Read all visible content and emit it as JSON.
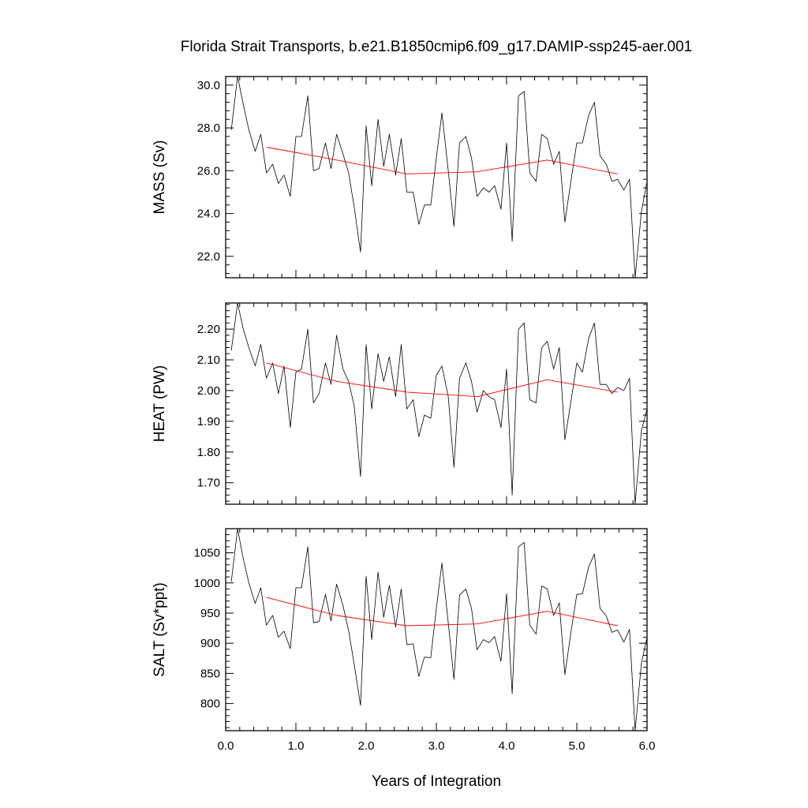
{
  "title": "Florida Strait Transports, b.e21.B1850cmip6.f09_g17.DAMIP-ssp245-aer.001",
  "colors": {
    "raw": "#000000",
    "smooth": "#ff0000",
    "frame": "#000000"
  },
  "chart_data": [
    {
      "type": "line",
      "name": "mass",
      "ylabel": "MASS (Sv)",
      "xlabel": "",
      "xlim": [
        0.0,
        6.0
      ],
      "ylim": [
        21.0,
        30.4
      ],
      "yticks": [
        22.0,
        24.0,
        26.0,
        28.0,
        30.0
      ],
      "ytick_labels": [
        "22.0",
        "24.0",
        "26.0",
        "28.0",
        "30.0"
      ],
      "xticks": [
        0.0,
        1.0,
        2.0,
        3.0,
        4.0,
        5.0,
        6.0
      ],
      "xtick_labels": [],
      "series": [
        {
          "x": [
            0.08,
            0.17,
            0.25,
            0.33,
            0.42,
            0.5,
            0.58,
            0.67,
            0.75,
            0.83,
            0.92,
            1.0,
            1.08,
            1.17,
            1.25,
            1.33,
            1.42,
            1.5,
            1.58,
            1.67,
            1.75,
            1.83,
            1.92,
            2.0,
            2.08,
            2.17,
            2.25,
            2.33,
            2.42,
            2.5,
            2.58,
            2.67,
            2.75,
            2.83,
            2.92,
            3.0,
            3.08,
            3.17,
            3.25,
            3.33,
            3.42,
            3.5,
            3.58,
            3.67,
            3.75,
            3.83,
            3.92,
            4.0,
            4.08,
            4.17,
            4.25,
            4.33,
            4.42,
            4.5,
            4.58,
            4.67,
            4.75,
            4.83,
            4.92,
            5.0,
            5.08,
            5.17,
            5.25,
            5.33,
            5.42,
            5.5,
            5.58,
            5.67,
            5.75,
            5.83,
            5.92,
            6.0
          ],
          "y": [
            27.9,
            30.4,
            29.1,
            27.9,
            26.9,
            27.7,
            25.9,
            26.3,
            25.4,
            25.8,
            24.8,
            27.6,
            27.6,
            29.5,
            26.0,
            26.1,
            27.3,
            26.1,
            27.7,
            26.8,
            25.9,
            24.3,
            22.2,
            28.1,
            25.3,
            28.4,
            26.2,
            27.7,
            25.8,
            27.5,
            25.0,
            25.0,
            23.5,
            24.4,
            24.4,
            26.6,
            28.7,
            26.0,
            23.4,
            27.3,
            27.6,
            26.6,
            24.8,
            25.2,
            25.0,
            25.3,
            24.2,
            27.3,
            22.7,
            29.5,
            29.7,
            25.9,
            25.5,
            27.7,
            27.5,
            26.3,
            26.9,
            23.6,
            25.6,
            27.3,
            27.3,
            28.6,
            29.2,
            26.7,
            26.3,
            25.5,
            25.6,
            25.1,
            25.6,
            21.0,
            24.1,
            25.5
          ]
        },
        {
          "x": [
            0.58,
            1.58,
            2.58,
            3.58,
            4.58,
            5.58
          ],
          "y": [
            27.1,
            26.5,
            25.85,
            25.95,
            26.5,
            25.85
          ]
        }
      ]
    },
    {
      "type": "line",
      "name": "heat",
      "ylabel": "HEAT (PW)",
      "xlabel": "",
      "xlim": [
        0.0,
        6.0
      ],
      "ylim": [
        1.63,
        2.285
      ],
      "yticks": [
        1.7,
        1.8,
        1.9,
        2.0,
        2.1,
        2.2
      ],
      "ytick_labels": [
        "1.70",
        "1.80",
        "1.90",
        "2.00",
        "2.10",
        "2.20"
      ],
      "xticks": [
        0.0,
        1.0,
        2.0,
        3.0,
        4.0,
        5.0,
        6.0
      ],
      "xtick_labels": [],
      "series": [
        {
          "x": [
            0.08,
            0.17,
            0.25,
            0.33,
            0.42,
            0.5,
            0.58,
            0.67,
            0.75,
            0.83,
            0.92,
            1.0,
            1.08,
            1.17,
            1.25,
            1.33,
            1.42,
            1.5,
            1.58,
            1.67,
            1.75,
            1.83,
            1.92,
            2.0,
            2.08,
            2.17,
            2.25,
            2.33,
            2.42,
            2.5,
            2.58,
            2.67,
            2.75,
            2.83,
            2.92,
            3.0,
            3.08,
            3.17,
            3.25,
            3.33,
            3.42,
            3.5,
            3.58,
            3.67,
            3.75,
            3.83,
            3.92,
            4.0,
            4.08,
            4.17,
            4.25,
            4.33,
            4.42,
            4.5,
            4.58,
            4.67,
            4.75,
            4.83,
            4.92,
            5.0,
            5.08,
            5.17,
            5.25,
            5.33,
            5.42,
            5.5,
            5.58,
            5.67,
            5.75,
            5.83,
            5.92,
            6.0
          ],
          "y": [
            2.13,
            2.285,
            2.2,
            2.14,
            2.08,
            2.15,
            2.04,
            2.09,
            1.99,
            2.08,
            1.88,
            2.06,
            2.07,
            2.2,
            1.96,
            1.99,
            2.09,
            2.02,
            2.18,
            2.07,
            2.03,
            1.95,
            1.72,
            2.15,
            1.94,
            2.12,
            2.03,
            2.11,
            1.98,
            2.15,
            1.94,
            1.97,
            1.85,
            1.92,
            1.91,
            2.05,
            2.08,
            1.98,
            1.75,
            2.04,
            2.09,
            2.03,
            1.93,
            2.0,
            1.98,
            1.97,
            1.88,
            2.07,
            1.66,
            2.2,
            2.22,
            1.97,
            1.96,
            2.14,
            2.16,
            2.07,
            2.14,
            1.84,
            1.97,
            2.09,
            2.06,
            2.17,
            2.22,
            2.02,
            2.02,
            1.99,
            2.01,
            2.0,
            2.04,
            1.63,
            1.87,
            1.94
          ]
        },
        {
          "x": [
            0.58,
            1.58,
            2.58,
            3.58,
            4.58,
            5.58
          ],
          "y": [
            2.09,
            2.03,
            1.995,
            1.98,
            2.035,
            1.995
          ]
        }
      ]
    },
    {
      "type": "line",
      "name": "salt",
      "ylabel": "SALT (Sv*ppt)",
      "xlabel": "Years of Integration",
      "xlim": [
        0.0,
        6.0
      ],
      "ylim": [
        755,
        1090
      ],
      "yticks": [
        800,
        850,
        900,
        950,
        1000,
        1050
      ],
      "ytick_labels": [
        "800",
        "850",
        "900",
        "950",
        "1000",
        "1050"
      ],
      "xticks": [
        0.0,
        1.0,
        2.0,
        3.0,
        4.0,
        5.0,
        6.0
      ],
      "xtick_labels": [
        "0.0",
        "1.0",
        "2.0",
        "3.0",
        "4.0",
        "5.0",
        "6.0"
      ],
      "series": [
        {
          "x": [
            0.08,
            0.17,
            0.25,
            0.33,
            0.42,
            0.5,
            0.58,
            0.67,
            0.75,
            0.83,
            0.92,
            1.0,
            1.08,
            1.17,
            1.25,
            1.33,
            1.42,
            1.5,
            1.58,
            1.67,
            1.75,
            1.83,
            1.92,
            2.0,
            2.08,
            2.17,
            2.25,
            2.33,
            2.42,
            2.5,
            2.58,
            2.67,
            2.75,
            2.83,
            2.92,
            3.0,
            3.08,
            3.17,
            3.25,
            3.33,
            3.42,
            3.5,
            3.58,
            3.67,
            3.75,
            3.83,
            3.92,
            4.0,
            4.08,
            4.17,
            4.25,
            4.33,
            4.42,
            4.5,
            4.58,
            4.67,
            4.75,
            4.83,
            4.92,
            5.0,
            5.08,
            5.17,
            5.25,
            5.33,
            5.42,
            5.5,
            5.58,
            5.67,
            5.75,
            5.83,
            5.92,
            6.0
          ],
          "y": [
            1002,
            1090,
            1040,
            1000,
            966,
            992,
            930,
            946,
            910,
            920,
            891,
            992,
            992,
            1060,
            934,
            936,
            981,
            937,
            998,
            963,
            921,
            865,
            797,
            1011,
            906,
            1018,
            943,
            996,
            927,
            990,
            898,
            899,
            845,
            877,
            876,
            958,
            1033,
            934,
            840,
            980,
            990,
            958,
            889,
            906,
            901,
            911,
            870,
            982,
            816,
            1060,
            1067,
            930,
            915,
            995,
            990,
            946,
            967,
            848,
            921,
            981,
            982,
            1027,
            1048,
            958,
            945,
            918,
            922,
            902,
            923,
            755,
            867,
            910
          ]
        },
        {
          "x": [
            0.58,
            1.58,
            2.58,
            3.58,
            4.58,
            5.58
          ],
          "y": [
            976,
            946,
            929,
            932,
            953,
            929
          ]
        }
      ]
    }
  ]
}
